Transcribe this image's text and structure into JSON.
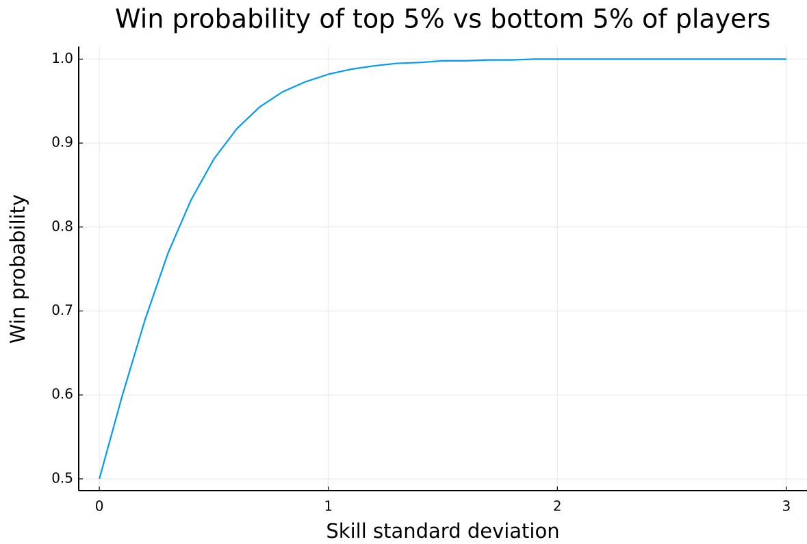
{
  "chart_data": {
    "type": "line",
    "title": "Win probability of top 5% vs bottom 5% of players",
    "x_label": "Skill standard deviation",
    "y_label": "Win probability",
    "x": [
      0,
      0.1,
      0.2,
      0.3,
      0.4,
      0.5,
      0.6,
      0.7,
      0.8,
      0.9,
      1.0,
      1.1,
      1.2,
      1.3,
      1.4,
      1.5,
      1.6,
      1.7,
      1.8,
      1.9,
      2.0,
      2.1,
      2.2,
      2.3,
      2.4,
      2.5,
      2.6,
      2.7,
      2.8,
      2.9,
      3.0
    ],
    "series": [
      {
        "name": "y1",
        "color": "#009af9",
        "values": [
          0.5,
          0.599,
          0.69,
          0.769,
          0.832,
          0.881,
          0.917,
          0.943,
          0.961,
          0.973,
          0.982,
          0.988,
          0.992,
          0.995,
          0.996,
          0.998,
          0.998,
          0.999,
          0.999,
          1.0,
          1.0,
          1.0,
          1.0,
          1.0,
          1.0,
          1.0,
          1.0,
          1.0,
          1.0,
          1.0,
          1.0
        ]
      }
    ],
    "xlim": [
      -0.09,
      3.09
    ],
    "ylim": [
      0.486,
      1.015
    ],
    "xticks": [
      0,
      1,
      2,
      3
    ],
    "yticks": [
      0.5,
      0.6,
      0.7,
      0.8,
      0.9,
      {
        "value": 1.0,
        "label": "1.0"
      }
    ],
    "grid": true
  }
}
